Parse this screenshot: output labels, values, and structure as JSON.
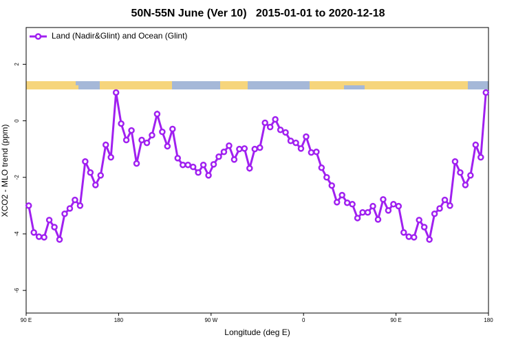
{
  "chart_data": {
    "type": "line",
    "title": "50N-55N June (Ver 10)   2015-01-01 to 2020-12-18",
    "xlabel": "Longitude (deg E)",
    "ylabel": "XCO2 - MLO trend (ppm)",
    "xlim": [
      90,
      540
    ],
    "xticks": [
      {
        "value": 90,
        "label": "90 E"
      },
      {
        "value": 180,
        "label": "180"
      },
      {
        "value": 270,
        "label": "90 W"
      },
      {
        "value": 360,
        "label": "0"
      },
      {
        "value": 450,
        "label": "90 E"
      },
      {
        "value": 540,
        "label": "180"
      }
    ],
    "ylim": [
      -6.8,
      3.3
    ],
    "yticks": [
      -6,
      -4,
      -2,
      0,
      2
    ],
    "legend": "upper left",
    "x": [
      92.5,
      97.5,
      102.5,
      107.5,
      112.5,
      117.5,
      122.5,
      127.5,
      132.5,
      137.5,
      142.5,
      147.5,
      152.5,
      157.5,
      162.5,
      167.5,
      172.5,
      177.5,
      182.5,
      187.5,
      192.5,
      197.5,
      202.5,
      207.5,
      212.5,
      217.5,
      222.5,
      227.5,
      232.5,
      237.5,
      242.5,
      247.5,
      252.5,
      257.5,
      262.5,
      267.5,
      272.5,
      277.5,
      282.5,
      287.5,
      292.5,
      297.5,
      302.5,
      307.5,
      312.5,
      317.5,
      322.5,
      327.5,
      332.5,
      337.5,
      342.5,
      347.5,
      352.5,
      357.5,
      362.5,
      367.5,
      372.5,
      377.5,
      382.5,
      387.5,
      392.5,
      397.5,
      402.5,
      407.5,
      412.5,
      417.5,
      422.5,
      427.5,
      432.5,
      437.5,
      442.5,
      447.5,
      452.5,
      457.5,
      462.5,
      467.5,
      472.5,
      477.5,
      482.5,
      487.5,
      492.5,
      497.5,
      502.5,
      507.5,
      512.5,
      517.5,
      522.5,
      527.5,
      532.5,
      537.5
    ],
    "series": [
      {
        "name": "Land (Nadir&Glint) and Ocean (Glint)",
        "color": "#a020f0",
        "values": [
          -3.0,
          -3.95,
          -4.1,
          -4.12,
          -3.51,
          -3.76,
          -4.2,
          -3.29,
          -3.1,
          -2.8,
          -3.0,
          -1.44,
          -1.83,
          -2.27,
          -1.93,
          -0.85,
          -1.29,
          1.0,
          -0.1,
          -0.68,
          -0.34,
          -1.51,
          -0.68,
          -0.78,
          -0.51,
          0.24,
          -0.39,
          -0.9,
          -0.29,
          -1.32,
          -1.56,
          -1.56,
          -1.63,
          -1.83,
          -1.56,
          -1.93,
          -1.54,
          -1.27,
          -1.1,
          -0.88,
          -1.37,
          -1.0,
          -0.98,
          -1.68,
          -1.0,
          -0.95,
          -0.07,
          -0.22,
          0.05,
          -0.32,
          -0.41,
          -0.71,
          -0.78,
          -0.98,
          -0.56,
          -1.12,
          -1.1,
          -1.66,
          -2.0,
          -2.29,
          -2.88,
          -2.63,
          -2.9,
          -2.95,
          -3.44,
          -3.24,
          -3.24,
          -3.02,
          -3.49,
          -2.78,
          -3.17,
          -2.95,
          -3.02,
          -3.95,
          -4.1,
          -4.12,
          -3.51,
          -3.76,
          -4.2,
          -3.29,
          -3.1,
          -2.8,
          -3.0,
          -1.44,
          -1.83,
          -2.27,
          -1.93,
          -0.85,
          -1.29,
          1.0
        ]
      }
    ]
  }
}
